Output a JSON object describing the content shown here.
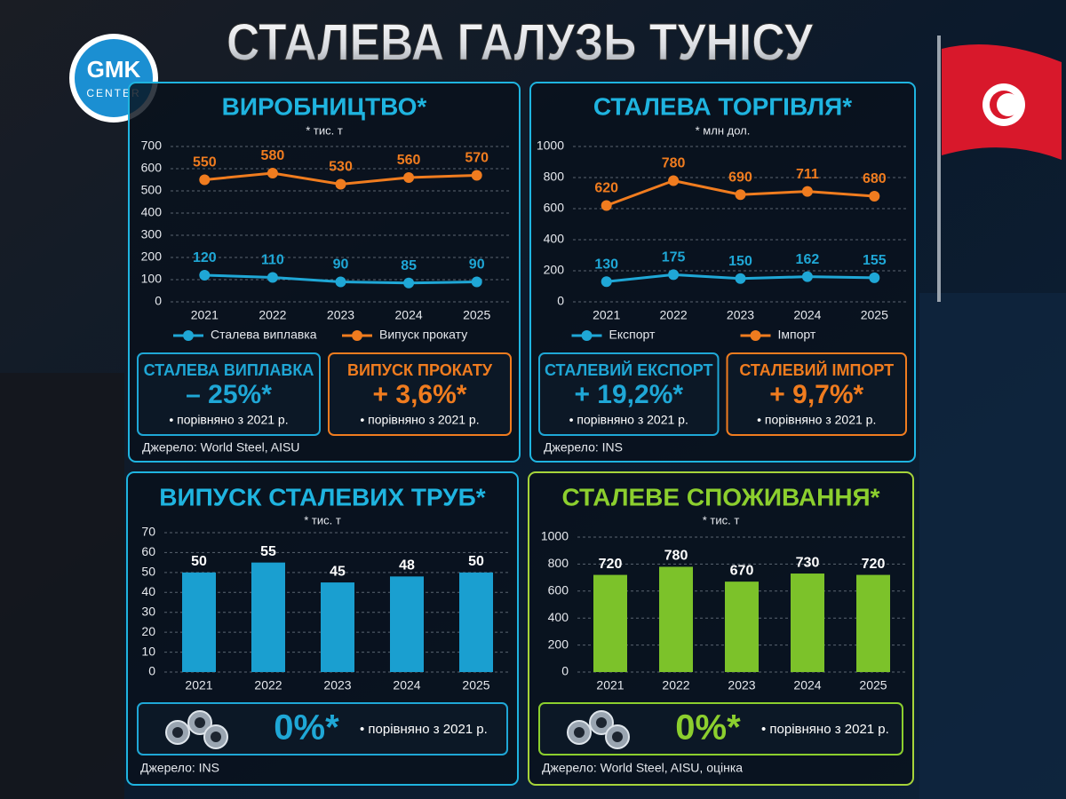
{
  "title": "СТАЛЕВА ГАЛУЗЬ ТУНІСУ",
  "logo": {
    "line1": "GMK",
    "line2": "CENTER"
  },
  "chart_data": [
    {
      "type": "line",
      "title": "ВИРОБНИЦТВО*",
      "subtitle": "* тис. т",
      "categories": [
        "2021",
        "2022",
        "2023",
        "2024",
        "2025"
      ],
      "series": [
        {
          "name": "Сталева виплавка",
          "color": "#1fa7d6",
          "values": [
            120,
            110,
            90,
            85,
            90
          ]
        },
        {
          "name": "Випуск прокату",
          "color": "#f07c1f",
          "values": [
            550,
            580,
            530,
            560,
            570
          ]
        }
      ],
      "ylim": [
        0,
        700
      ],
      "yticks": [
        0,
        100,
        200,
        300,
        400,
        500,
        600,
        700
      ],
      "grid": true,
      "cards": [
        {
          "title": "СТАЛЕВА ВИПЛАВКА",
          "value": "– 25%*",
          "note": "• порівняно з 2021 р.",
          "color": "#1fa7d6"
        },
        {
          "title": "ВИПУСК ПРОКАТУ",
          "value": "+ 3,6%*",
          "note": "• порівняно з 2021 р.",
          "color": "#f07c1f"
        }
      ],
      "source": "Джерело: World Steel, AISU"
    },
    {
      "type": "line",
      "title": "СТАЛЕВА ТОРГІВЛЯ*",
      "subtitle": "* млн дол.",
      "categories": [
        "2021",
        "2022",
        "2023",
        "2024",
        "2025"
      ],
      "series": [
        {
          "name": "Експорт",
          "color": "#1fa7d6",
          "values": [
            130,
            175,
            150,
            162,
            155
          ]
        },
        {
          "name": "Імпорт",
          "color": "#f07c1f",
          "values": [
            620,
            780,
            690,
            711,
            680
          ]
        }
      ],
      "ylim": [
        0,
        1000
      ],
      "yticks": [
        0,
        200,
        400,
        600,
        800,
        1000
      ],
      "grid": true,
      "cards": [
        {
          "title": "СТАЛЕВИЙ ЕКСПОРТ",
          "value": "+ 19,2%*",
          "note": "• порівняно з 2021 р.",
          "color": "#1fa7d6"
        },
        {
          "title": "СТАЛЕВИЙ ІМПОРТ",
          "value": "+ 9,7%*",
          "note": "• порівняно з 2021 р.",
          "color": "#f07c1f"
        }
      ],
      "source": "Джерело: INS"
    },
    {
      "type": "bar",
      "title": "ВИПУСК СТАЛЕВИХ ТРУБ*",
      "subtitle": "* тис. т",
      "categories": [
        "2021",
        "2022",
        "2023",
        "2024",
        "2025"
      ],
      "values": [
        50,
        55,
        45,
        48,
        50
      ],
      "color": "#1a9fd0",
      "ylim": [
        0,
        70
      ],
      "yticks": [
        0,
        10,
        20,
        30,
        40,
        50,
        60,
        70
      ],
      "grid": true,
      "cards": [
        {
          "value": "0%*",
          "note": "• порівняно з 2021 р.",
          "color": "#1fa7d6"
        }
      ],
      "source": "Джерело: INS"
    },
    {
      "type": "bar",
      "title": "СТАЛЕВЕ СПОЖИВАННЯ*",
      "subtitle": "* тис. т",
      "categories": [
        "2021",
        "2022",
        "2023",
        "2024",
        "2025"
      ],
      "values": [
        720,
        780,
        670,
        730,
        720
      ],
      "color": "#7cc22a",
      "ylim": [
        0,
        1000
      ],
      "yticks": [
        0,
        200,
        400,
        600,
        800,
        1000
      ],
      "grid": true,
      "cards": [
        {
          "value": "0%*",
          "note": "• порівняно з 2021 р.",
          "color": "#8ccf2e"
        }
      ],
      "source": "Джерело: World Steel, AISU, оцінка"
    }
  ]
}
